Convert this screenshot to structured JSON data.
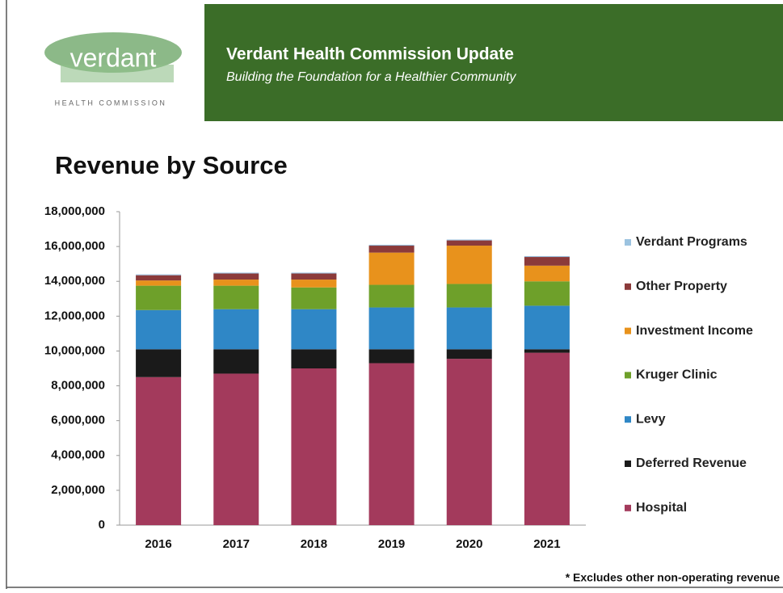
{
  "header": {
    "logo": "verdant",
    "logo_sub": "HEALTH COMMISSION",
    "title": "Verdant Health Commission Update",
    "subtitle": "Building the Foundation for a Healthier Community"
  },
  "chart_data": {
    "type": "stacked_bar",
    "title": "Revenue by Source",
    "categories": [
      "2016",
      "2017",
      "2018",
      "2019",
      "2020",
      "2021"
    ],
    "series": [
      {
        "name": "Hospital",
        "color": "#a33a5c",
        "values": [
          8500000,
          8700000,
          9000000,
          9300000,
          9550000,
          9900000
        ]
      },
      {
        "name": "Deferred Revenue",
        "color": "#1a1a1a",
        "values": [
          1600000,
          1400000,
          1100000,
          800000,
          550000,
          200000
        ]
      },
      {
        "name": "Levy",
        "color": "#2f87c6",
        "values": [
          2250000,
          2300000,
          2300000,
          2400000,
          2400000,
          2500000
        ]
      },
      {
        "name": "Kruger Clinic",
        "color": "#6ea02a",
        "values": [
          1400000,
          1350000,
          1250000,
          1300000,
          1350000,
          1400000
        ]
      },
      {
        "name": "Investment Income",
        "color": "#e8921c",
        "values": [
          300000,
          350000,
          450000,
          1850000,
          2200000,
          900000
        ]
      },
      {
        "name": "Other Property",
        "color": "#8b3a3a",
        "values": [
          300000,
          350000,
          350000,
          400000,
          300000,
          500000
        ]
      },
      {
        "name": "Verdant Programs",
        "color": "#9cc3e0",
        "values": [
          50000,
          50000,
          50000,
          50000,
          50000,
          50000
        ]
      }
    ],
    "ylim": [
      0,
      18000000
    ],
    "yticks": [
      0,
      {
        "value": 2000000,
        "label": "2,000,000"
      },
      {
        "value": 4000000,
        "label": "4,000,000"
      },
      {
        "value": 6000000,
        "label": "6,000,000"
      },
      {
        "value": 8000000,
        "label": "8,000,000"
      },
      {
        "value": 10000000,
        "label": "10,000,000"
      },
      {
        "value": 12000000,
        "label": "12,000,000"
      },
      {
        "value": 14000000,
        "label": "14,000,000"
      },
      {
        "value": 16000000,
        "label": "16,000,000"
      },
      {
        "value": 18000000,
        "label": "18,000,000"
      }
    ],
    "grid": false,
    "legend": "right",
    "note": "* Excludes other non-operating revenue"
  }
}
